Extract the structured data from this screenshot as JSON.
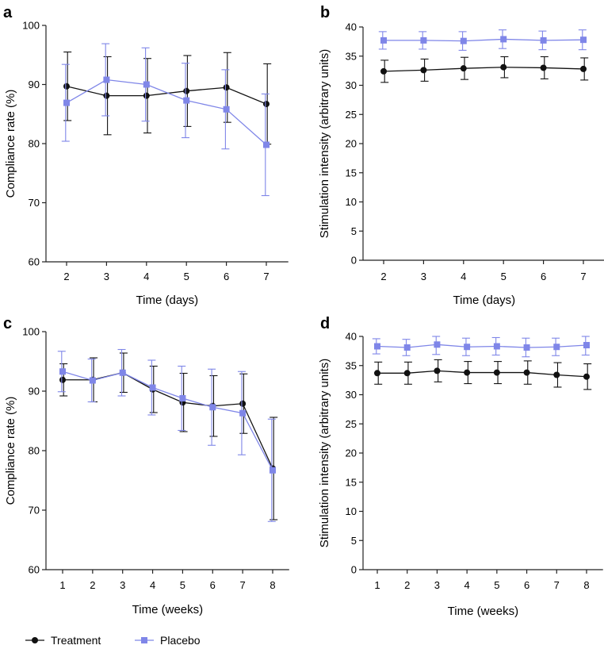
{
  "legend": {
    "treatment": "Treatment",
    "placebo": "Placebo"
  },
  "colors": {
    "treatment": "#111111",
    "placebo": "#7f86e8",
    "axis": "#222222"
  },
  "chart_data": [
    {
      "panel": "a",
      "type": "line",
      "title": "",
      "xlabel": "Time (days)",
      "ylabel": "Compliance rate (%)",
      "x": [
        2,
        3,
        4,
        5,
        6,
        7
      ],
      "xticks": [
        "2",
        "3",
        "4",
        "5",
        "6",
        "7"
      ],
      "ylim": [
        60,
        100
      ],
      "yticks": [
        60,
        70,
        80,
        90,
        100
      ],
      "series": [
        {
          "name": "Treatment",
          "values": [
            89.7,
            88.1,
            88.1,
            88.9,
            89.5,
            86.7
          ],
          "err": [
            5.8,
            6.6,
            6.3,
            6.0,
            5.9,
            6.8
          ]
        },
        {
          "name": "Placebo",
          "values": [
            86.9,
            90.8,
            90.0,
            87.3,
            85.8,
            79.8
          ],
          "err": [
            6.5,
            6.1,
            6.2,
            6.3,
            6.7,
            8.6
          ]
        }
      ]
    },
    {
      "panel": "b",
      "type": "line",
      "title": "",
      "xlabel": "Time (days)",
      "ylabel": "Stimulation intensity (arbitrary units)",
      "x": [
        2,
        3,
        4,
        5,
        6,
        7
      ],
      "xticks": [
        "2",
        "3",
        "4",
        "5",
        "6",
        "7"
      ],
      "ylim": [
        0,
        40
      ],
      "yticks": [
        0,
        5,
        10,
        15,
        20,
        25,
        30,
        35,
        40
      ],
      "series": [
        {
          "name": "Treatment",
          "values": [
            32.4,
            32.6,
            32.9,
            33.1,
            33.0,
            32.8
          ],
          "err": [
            1.9,
            1.9,
            1.9,
            1.8,
            1.9,
            1.9
          ]
        },
        {
          "name": "Placebo",
          "values": [
            37.7,
            37.7,
            37.6,
            37.9,
            37.7,
            37.8
          ],
          "err": [
            1.5,
            1.5,
            1.6,
            1.6,
            1.6,
            1.7
          ]
        }
      ]
    },
    {
      "panel": "c",
      "type": "line",
      "title": "",
      "xlabel": "Time (weeks)",
      "ylabel": "Compliance rate (%)",
      "x": [
        1,
        2,
        3,
        4,
        5,
        6,
        7,
        8
      ],
      "xticks": [
        "1",
        "2",
        "3",
        "4",
        "5",
        "6",
        "7",
        "8"
      ],
      "ylim": [
        60,
        100
      ],
      "yticks": [
        60,
        70,
        80,
        90,
        100
      ],
      "series": [
        {
          "name": "Treatment",
          "values": [
            91.9,
            91.9,
            93.1,
            90.3,
            88.1,
            87.5,
            87.9,
            77.0
          ],
          "err": [
            2.7,
            3.7,
            3.3,
            3.9,
            4.9,
            5.1,
            5.0,
            8.6
          ]
        },
        {
          "name": "Placebo",
          "values": [
            93.3,
            91.8,
            93.1,
            90.6,
            88.8,
            87.3,
            86.3,
            76.7
          ],
          "err": [
            3.4,
            3.6,
            3.9,
            4.6,
            5.4,
            6.4,
            7.0,
            8.6
          ]
        }
      ]
    },
    {
      "panel": "d",
      "type": "line",
      "title": "",
      "xlabel": "Time (weeks)",
      "ylabel": "Stimulation intensity (arbitrary units)",
      "x": [
        1,
        2,
        3,
        4,
        5,
        6,
        7,
        8
      ],
      "xticks": [
        "1",
        "2",
        "3",
        "4",
        "5",
        "6",
        "7",
        "8"
      ],
      "ylim": [
        0,
        40
      ],
      "yticks": [
        0,
        5,
        10,
        15,
        20,
        25,
        30,
        35,
        40
      ],
      "series": [
        {
          "name": "Treatment",
          "values": [
            33.7,
            33.7,
            34.1,
            33.8,
            33.8,
            33.8,
            33.4,
            33.1
          ],
          "err": [
            1.9,
            1.9,
            1.9,
            1.9,
            1.9,
            2.0,
            2.1,
            2.2
          ]
        },
        {
          "name": "Placebo",
          "values": [
            38.3,
            38.1,
            38.6,
            38.2,
            38.3,
            38.1,
            38.2,
            38.5
          ],
          "err": [
            1.3,
            1.4,
            1.7,
            1.5,
            1.5,
            1.6,
            1.5,
            1.7
          ]
        }
      ]
    }
  ]
}
